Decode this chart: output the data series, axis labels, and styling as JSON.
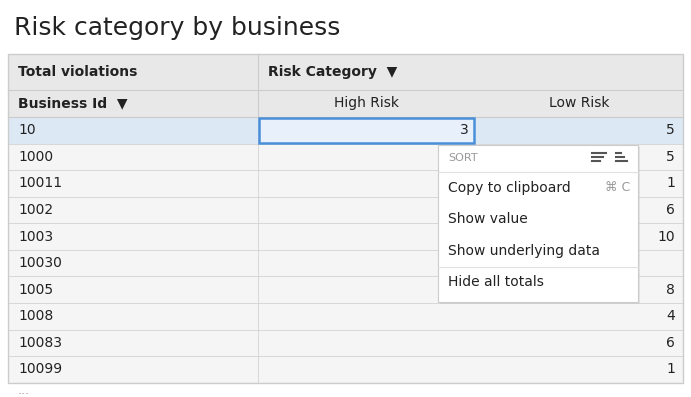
{
  "title": "Risk category by business",
  "title_fontsize": 18,
  "bg_color": "#ffffff",
  "table_bg": "#f0f0f0",
  "header_bg": "#e8e8e8",
  "selected_row_bg": "#dde8f5",
  "row_bg_alt": "#f5f5f5",
  "row_bg": "#ebebeb",
  "border_color": "#cccccc",
  "text_color": "#222222",
  "header_text_color": "#222222",
  "sort_label_color": "#999999",
  "context_menu_bg": "#ffffff",
  "context_menu_border": "#cccccc",
  "context_menu_separator": "#e0e0e0",
  "blue_border": "#4a90d9",
  "blue_cell_bg": "#e8f0fc",
  "col1_label": "Total violations",
  "col2_label": "Risk Category",
  "col_filter_arrow": "▼",
  "row_header": "Business Id",
  "col_high_risk": "High Risk",
  "col_low_risk": "Low Risk",
  "business_ids": [
    "10",
    "1000",
    "10011",
    "1002",
    "1003",
    "10030",
    "1005",
    "1008",
    "10083",
    "10099"
  ],
  "high_risk_vals": [
    "3",
    "",
    "",
    "",
    "",
    "",
    "",
    "",
    "",
    ""
  ],
  "low_risk_vals": [
    "5",
    "5",
    "1",
    "6",
    "10",
    "",
    "8",
    "4",
    "6",
    "1"
  ],
  "context_menu": {
    "sort_label": "SORT",
    "items": [
      "Copy to clipboard",
      "Show value",
      "Show underlying data",
      "Hide all totals"
    ],
    "clipboard_shortcut": "⌘ C",
    "separator_after": 3
  }
}
